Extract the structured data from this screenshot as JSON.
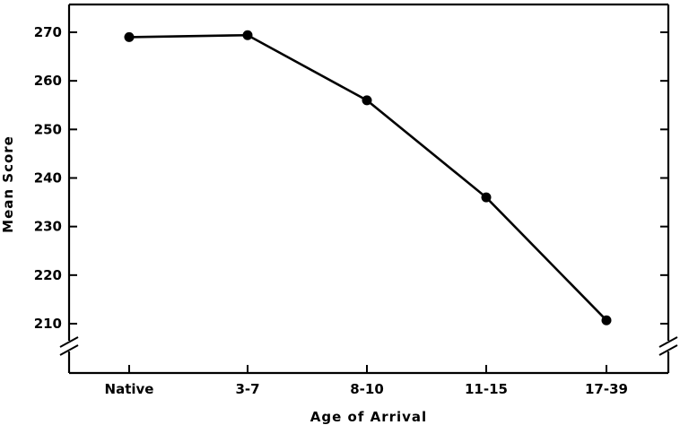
{
  "chart_data": {
    "type": "line",
    "xlabel": "Age of Arrival",
    "ylabel": "Mean Score",
    "categories": [
      "Native",
      "3-7",
      "8-10",
      "11-15",
      "17-39"
    ],
    "series": [
      {
        "values": [
          269,
          269.4,
          256,
          236,
          210.7
        ]
      }
    ],
    "yticks": [
      210,
      220,
      230,
      240,
      250,
      260,
      270
    ],
    "ytick_labels": [
      "210",
      "220",
      "230",
      "240",
      "250",
      "260",
      "270"
    ],
    "ylim": [
      200,
      276
    ],
    "y_axis_break": true,
    "grid": false,
    "legend": "none"
  }
}
